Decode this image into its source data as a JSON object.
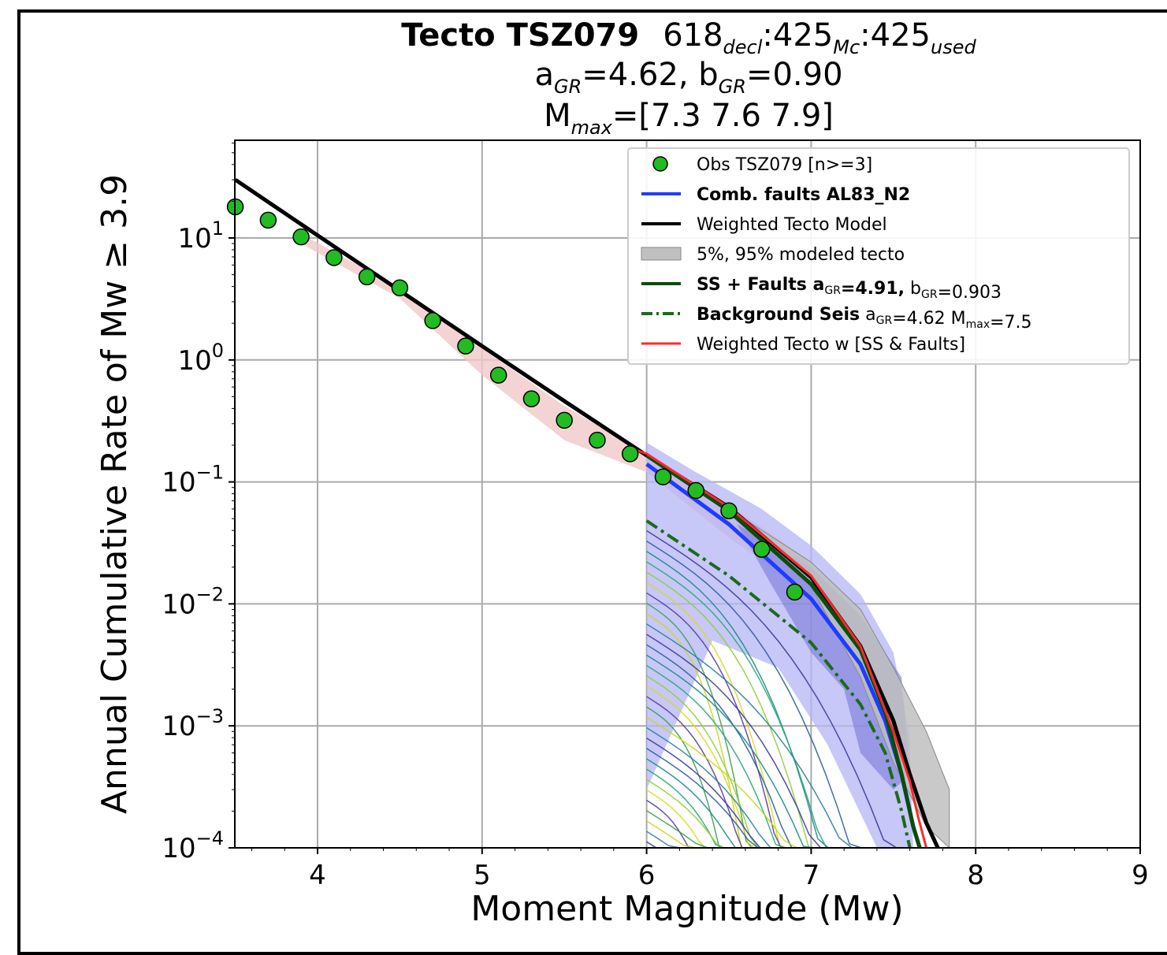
{
  "chart_data": {
    "type": "line",
    "title": {
      "name": "Tecto TSZ079",
      "counts": [
        {
          "value": "618",
          "sub": "decl"
        },
        {
          "value": "425",
          "sub": "Mc"
        },
        {
          "value": "425",
          "sub": "used"
        }
      ],
      "a_gr": "4.62",
      "b_gr": "0.90",
      "mmax": "[7.3 7.6 7.9]"
    },
    "xlabel": "Moment Magnitude (Mw)",
    "ylabel": "Annual Cumulative Rate of Mw ≥ 3.9",
    "xlim": [
      3.5,
      9
    ],
    "ylim_log10": [
      -4,
      1.8
    ],
    "yscale": "log",
    "grid": true,
    "legend_position": "top-right",
    "xticks": [
      4,
      5,
      6,
      7,
      8,
      9
    ],
    "yticks": [
      {
        "base": "10",
        "exp": "1",
        "log": 1
      },
      {
        "base": "10",
        "exp": "0",
        "log": 0
      },
      {
        "base": "10",
        "exp": "−1",
        "log": -1
      },
      {
        "base": "10",
        "exp": "−2",
        "log": -2
      },
      {
        "base": "10",
        "exp": "−3",
        "log": -3
      },
      {
        "base": "10",
        "exp": "−4",
        "log": -4
      }
    ],
    "legend": [
      {
        "key": "obs",
        "parts": [
          {
            "t": "Obs TSZ079 [n>=3]"
          }
        ]
      },
      {
        "key": "comb",
        "parts": [
          {
            "t": "Comb.  faults AL83_N2",
            "b": true
          }
        ]
      },
      {
        "key": "weighted",
        "parts": [
          {
            "t": "Weighted Tecto Model"
          }
        ]
      },
      {
        "key": "band",
        "parts": [
          {
            "t": "5%, 95% modeled tecto"
          }
        ]
      },
      {
        "key": "ss",
        "parts": [
          {
            "t": "SS + Faults a",
            "b": true
          },
          {
            "t": "GR",
            "s": true
          },
          {
            "t": "=4.91,",
            "b": true
          },
          {
            "t": "  b"
          },
          {
            "t": "GR",
            "s": true
          },
          {
            "t": "=0.903"
          }
        ]
      },
      {
        "key": "bg",
        "parts": [
          {
            "t": "Background Seis",
            "b": true
          },
          {
            "t": " a"
          },
          {
            "t": "GR",
            "s": true
          },
          {
            "t": "=4.62 M"
          },
          {
            "t": "max",
            "s": true
          },
          {
            "t": "=7.5"
          }
        ]
      },
      {
        "key": "wss",
        "parts": [
          {
            "t": "Weighted Tecto w [SS & Faults]"
          }
        ]
      }
    ],
    "colors": {
      "obs_fill": "#22bb22",
      "comb": "#1e3cff",
      "weighted": "#000000",
      "band": "#c0c0c0",
      "ss": "#0b4d0b",
      "bg": "#1a6b1a",
      "wss": "#ff2a2a",
      "blue_band": "#b4b4f5",
      "pink_band": "#f0c8c8"
    },
    "series": [
      {
        "name": "Obs TSZ079 [n>=3]",
        "marker": "circle",
        "x": [
          3.5,
          3.7,
          3.9,
          4.1,
          4.3,
          4.5,
          4.7,
          4.9,
          5.1,
          5.3,
          5.5,
          5.7,
          5.9,
          6.1,
          6.3,
          6.5,
          6.7,
          6.9
        ],
        "y": [
          18,
          14,
          10.2,
          6.9,
          4.8,
          3.9,
          2.1,
          1.3,
          0.75,
          0.48,
          0.32,
          0.22,
          0.17,
          0.11,
          0.085,
          0.058,
          0.028,
          0.0125
        ]
      },
      {
        "name": "Weighted Tecto Model",
        "x": [
          3.5,
          4.0,
          4.5,
          5.0,
          5.5,
          6.0,
          6.5,
          7.0,
          7.3,
          7.5,
          7.6,
          7.7,
          7.77
        ],
        "y": [
          30,
          10.5,
          3.7,
          1.3,
          0.46,
          0.165,
          0.062,
          0.0165,
          0.0045,
          0.0011,
          0.0004,
          0.00016,
          0.0001
        ]
      },
      {
        "name": "Comb.  faults AL83_N2",
        "x": [
          6.0,
          6.5,
          7.0,
          7.3,
          7.45,
          7.55,
          7.62,
          7.66
        ],
        "y": [
          0.14,
          0.045,
          0.011,
          0.0032,
          0.0011,
          0.0004,
          0.00015,
          0.0001
        ]
      },
      {
        "name": "SS + Faults aGR=4.91,  bGR=0.903",
        "x": [
          6.0,
          6.5,
          7.0,
          7.3,
          7.45,
          7.55,
          7.62,
          7.66
        ],
        "y": [
          0.165,
          0.058,
          0.0145,
          0.0042,
          0.0013,
          0.0004,
          0.00015,
          0.0001
        ]
      },
      {
        "name": "Background Seis aGR=4.62 Mmax=7.5",
        "x": [
          6.0,
          6.5,
          7.0,
          7.3,
          7.45,
          7.55,
          7.6
        ],
        "y": [
          0.048,
          0.017,
          0.0048,
          0.0015,
          0.0006,
          0.0002,
          0.0001
        ]
      },
      {
        "name": "Weighted Tecto w [SS & Faults]",
        "x": [
          5.9,
          6.0,
          6.5,
          7.0,
          7.3,
          7.5,
          7.6,
          7.65,
          7.7
        ],
        "y": [
          0.19,
          0.17,
          0.062,
          0.017,
          0.0045,
          0.0009,
          0.00035,
          0.00018,
          0.0001
        ]
      },
      {
        "name": "5%, 95% modeled tecto",
        "type": "band",
        "x": [
          6.5,
          7.0,
          7.3,
          7.5,
          7.7,
          7.84
        ],
        "upper": [
          0.06,
          0.022,
          0.009,
          0.003,
          0.0009,
          0.0003
        ],
        "lower": [
          0.055,
          0.014,
          0.0025,
          0.0005,
          0.00015,
          0.0001
        ]
      }
    ]
  }
}
